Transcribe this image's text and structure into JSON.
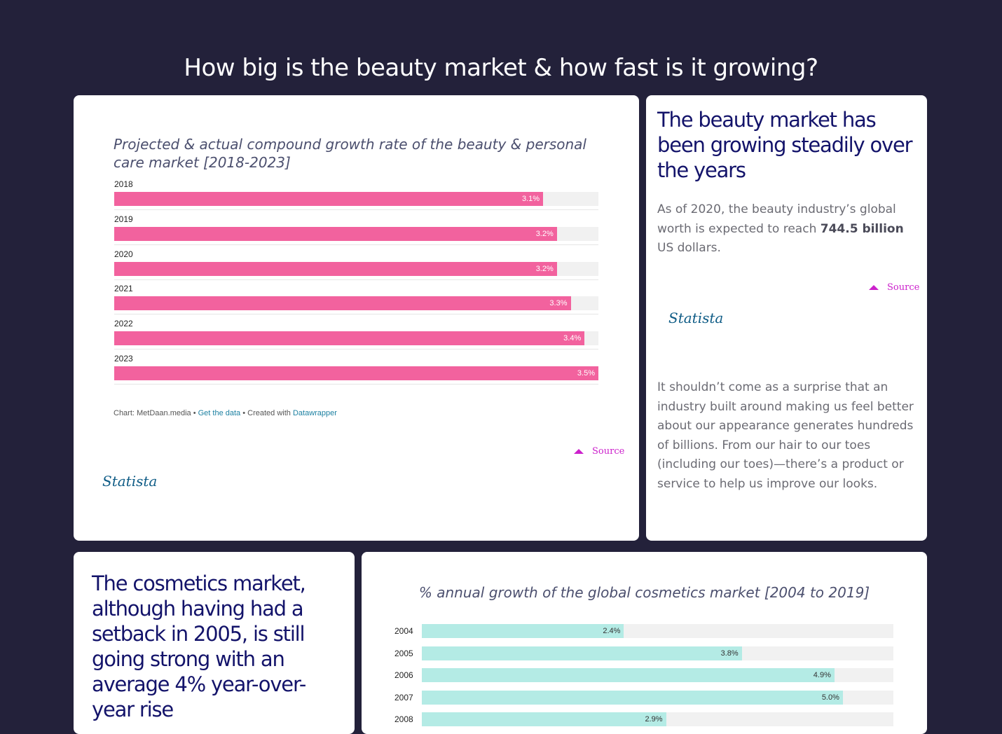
{
  "page": {
    "title": "How big is the beauty market & how fast is it growing?"
  },
  "card1": {
    "footer": {
      "prefix": "Chart: MetDaan.media • ",
      "get_data": "Get the data",
      "middle": " • Created with ",
      "tool": "Datawrapper"
    },
    "source_label": "Source",
    "statista_logo": "Statista"
  },
  "card2": {
    "headline": "The beauty market has been growing steadily over the years",
    "para1_before": "As of 2020, the beauty industry’s global worth is expected to reach ",
    "para1_bold": "744.5 billion",
    "para1_after": " US dollars.",
    "source_label": "Source",
    "statista_logo": "Statista",
    "para2": "It shouldn’t come as a surprise that an industry built around making us feel better about our appearance generates hundreds of billions. From our hair to our toes (including our toes)—there’s a product or service to help us improve our looks."
  },
  "card3": {
    "headline": "The cosmetics market, although having had a setback in 2005, is still going strong with an average 4% year-over-year rise"
  },
  "chart_data": [
    {
      "type": "bar",
      "orientation": "horizontal",
      "title": "Projected & actual compound growth rate of the beauty & personal care market [2018-2023]",
      "categories": [
        "2018",
        "2019",
        "2020",
        "2021",
        "2022",
        "2023"
      ],
      "values": [
        3.1,
        3.2,
        3.2,
        3.3,
        3.4,
        3.5
      ],
      "value_labels": [
        "3.1%",
        "3.2%",
        "3.2%",
        "3.3%",
        "3.4%",
        "3.5%"
      ],
      "xlim": [
        0,
        3.5
      ],
      "color": "#f2629e",
      "label_color": "#ffffff"
    },
    {
      "type": "bar",
      "orientation": "horizontal",
      "title": "% annual growth of the global cosmetics market [2004 to 2019]",
      "categories": [
        "2004",
        "2005",
        "2006",
        "2007",
        "2008"
      ],
      "values": [
        2.4,
        3.8,
        4.9,
        5.0,
        2.9
      ],
      "value_labels": [
        "2.4%",
        "3.8%",
        "4.9%",
        "5.0%",
        "2.9%"
      ],
      "xlim": [
        0,
        5.6
      ],
      "color": "#b4ebe5",
      "label_color": "#333333"
    }
  ]
}
